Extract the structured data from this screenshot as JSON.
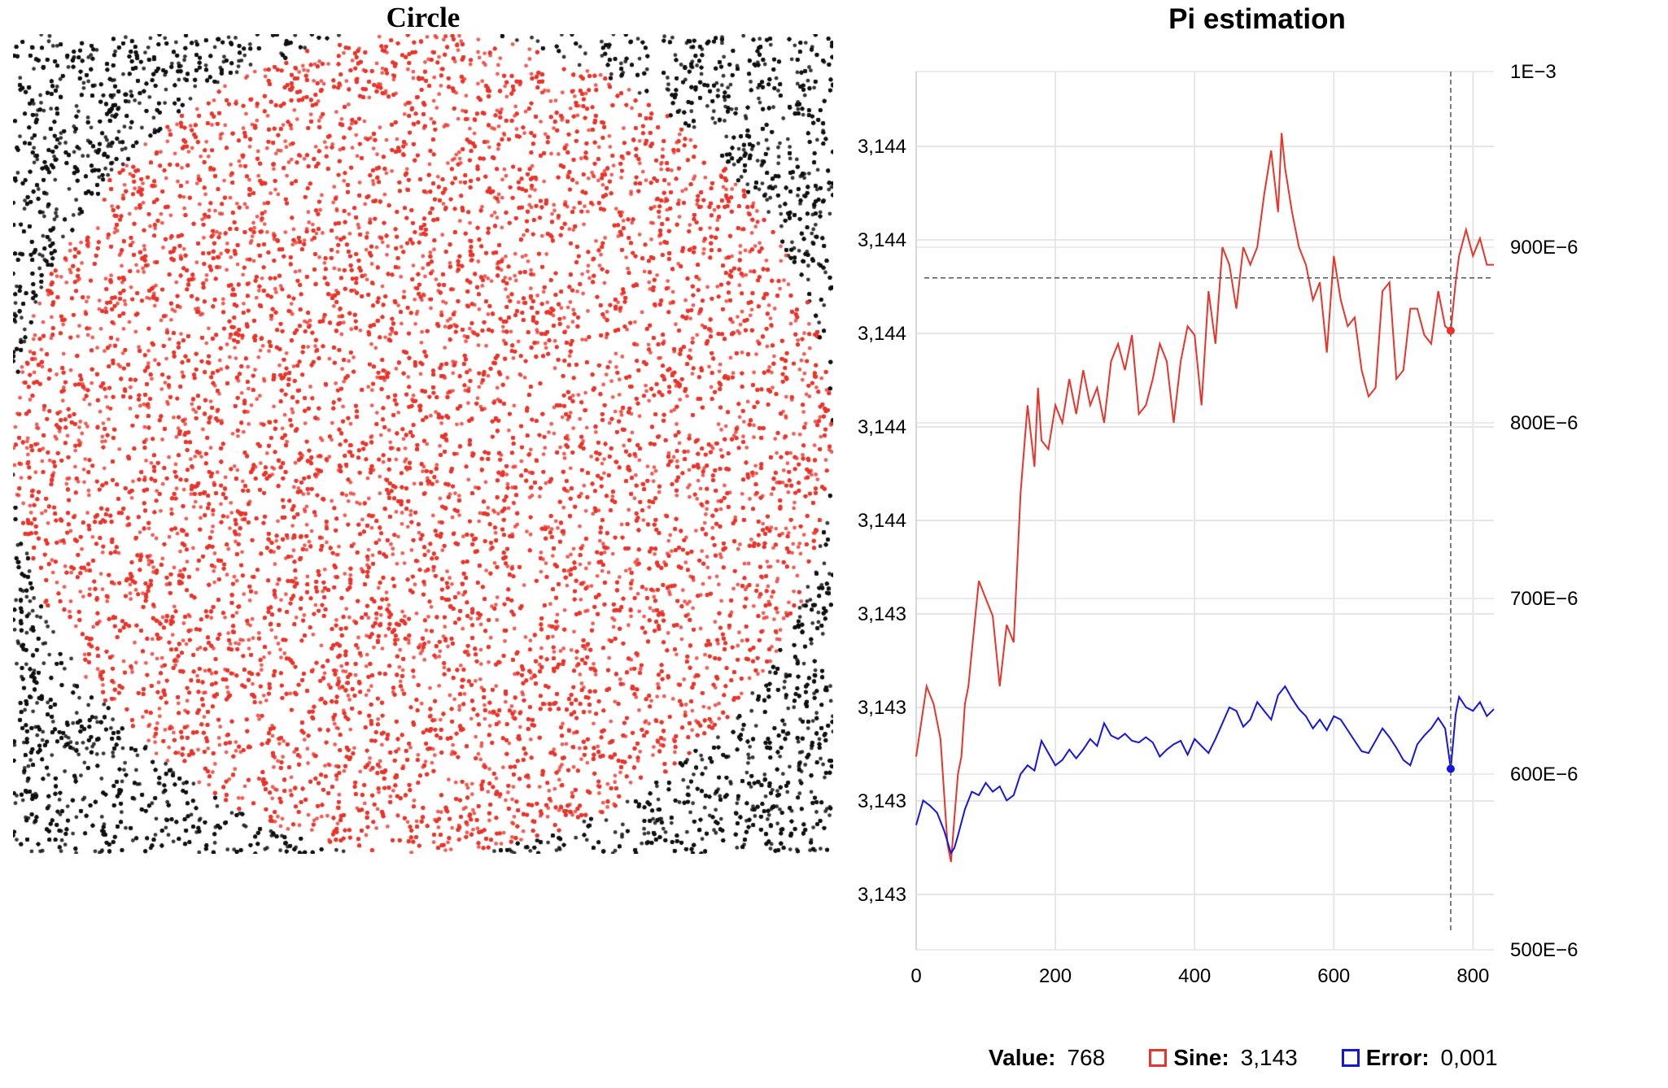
{
  "circle_panel": {
    "title": "Circle",
    "inside_color": "#e8342a",
    "outside_color": "#111111",
    "scatter_x_range": [
      -1,
      1
    ],
    "scatter_y_range": [
      -1,
      1
    ]
  },
  "chart_data": {
    "type": "line",
    "title": "Pi estimation",
    "x_ticks": [
      "0",
      "200",
      "400",
      "600",
      "800"
    ],
    "xlim": [
      0,
      830
    ],
    "y_left_ticks": [
      "3,144",
      "3,144",
      "3,144",
      "3,144",
      "3,144",
      "3,143",
      "3,143",
      "3,143",
      "3,143"
    ],
    "y_right_ticks": [
      "1E−3",
      "900E−6",
      "800E−6",
      "700E−6",
      "600E−6",
      "500E−6"
    ],
    "y_right_values": [
      0.001,
      0.0009,
      0.0008,
      0.0007,
      0.0006,
      0.0005
    ],
    "grid": true,
    "cursor": {
      "x": 768,
      "sine_y_fraction": 0.705,
      "error": 0.000603
    },
    "series": [
      {
        "name": "Sine",
        "color": "#e8342a",
        "axis": "left",
        "x": [
          0,
          15,
          25,
          35,
          45,
          50,
          55,
          60,
          65,
          70,
          75,
          80,
          90,
          100,
          110,
          120,
          130,
          140,
          150,
          160,
          170,
          175,
          180,
          190,
          200,
          210,
          220,
          230,
          240,
          250,
          260,
          270,
          280,
          290,
          300,
          310,
          320,
          330,
          340,
          350,
          360,
          370,
          380,
          390,
          400,
          410,
          420,
          430,
          440,
          450,
          460,
          470,
          480,
          490,
          500,
          510,
          520,
          525,
          530,
          540,
          550,
          560,
          570,
          580,
          590,
          600,
          610,
          620,
          630,
          640,
          650,
          660,
          670,
          680,
          690,
          700,
          710,
          720,
          730,
          740,
          750,
          760,
          768,
          775,
          780,
          790,
          800,
          810,
          820,
          830
        ],
        "y_fraction": [
          0.22,
          0.3,
          0.28,
          0.24,
          0.12,
          0.1,
          0.15,
          0.2,
          0.22,
          0.28,
          0.3,
          0.34,
          0.42,
          0.4,
          0.38,
          0.3,
          0.37,
          0.35,
          0.52,
          0.62,
          0.55,
          0.64,
          0.58,
          0.57,
          0.62,
          0.6,
          0.65,
          0.61,
          0.66,
          0.62,
          0.64,
          0.6,
          0.67,
          0.69,
          0.66,
          0.7,
          0.61,
          0.62,
          0.65,
          0.69,
          0.67,
          0.6,
          0.67,
          0.71,
          0.7,
          0.62,
          0.75,
          0.69,
          0.8,
          0.78,
          0.73,
          0.8,
          0.78,
          0.8,
          0.86,
          0.91,
          0.84,
          0.93,
          0.89,
          0.84,
          0.8,
          0.78,
          0.74,
          0.76,
          0.68,
          0.79,
          0.74,
          0.71,
          0.72,
          0.66,
          0.63,
          0.64,
          0.75,
          0.76,
          0.65,
          0.66,
          0.73,
          0.73,
          0.7,
          0.69,
          0.75,
          0.71,
          0.705,
          0.76,
          0.79,
          0.82,
          0.79,
          0.81,
          0.78,
          0.78
        ]
      },
      {
        "name": "Error",
        "color": "#1515e0",
        "axis": "right",
        "x": [
          0,
          10,
          20,
          30,
          40,
          50,
          55,
          60,
          70,
          80,
          90,
          100,
          110,
          120,
          130,
          140,
          150,
          160,
          170,
          180,
          190,
          200,
          210,
          220,
          230,
          240,
          250,
          260,
          270,
          280,
          290,
          300,
          310,
          320,
          330,
          340,
          350,
          360,
          370,
          380,
          390,
          400,
          410,
          420,
          430,
          440,
          450,
          460,
          470,
          480,
          490,
          500,
          510,
          520,
          530,
          540,
          550,
          560,
          570,
          580,
          590,
          600,
          610,
          620,
          630,
          640,
          650,
          660,
          670,
          680,
          690,
          700,
          710,
          720,
          730,
          740,
          750,
          760,
          768,
          775,
          780,
          790,
          800,
          810,
          820,
          830
        ],
        "y": [
          0.000571,
          0.000585,
          0.000582,
          0.000578,
          0.000568,
          0.000555,
          0.000558,
          0.000565,
          0.00058,
          0.00059,
          0.000588,
          0.000595,
          0.00059,
          0.000593,
          0.000585,
          0.000588,
          0.0006,
          0.000605,
          0.000602,
          0.000619,
          0.000612,
          0.000605,
          0.000608,
          0.000614,
          0.000609,
          0.000614,
          0.00062,
          0.000616,
          0.000629,
          0.000622,
          0.00062,
          0.000623,
          0.000619,
          0.000618,
          0.000621,
          0.000618,
          0.00061,
          0.000614,
          0.000617,
          0.000619,
          0.000611,
          0.00062,
          0.000616,
          0.000612,
          0.00062,
          0.000629,
          0.000638,
          0.000636,
          0.000627,
          0.000631,
          0.000641,
          0.000636,
          0.000631,
          0.000645,
          0.00065,
          0.000643,
          0.000637,
          0.000633,
          0.000626,
          0.000631,
          0.000625,
          0.000633,
          0.000631,
          0.000625,
          0.000619,
          0.000613,
          0.000612,
          0.000619,
          0.000626,
          0.000621,
          0.000615,
          0.000608,
          0.000605,
          0.000617,
          0.000622,
          0.000626,
          0.000632,
          0.000626,
          0.000603,
          0.000634,
          0.000644,
          0.000638,
          0.000636,
          0.000641,
          0.000633,
          0.000637
        ]
      }
    ]
  },
  "legend": {
    "value_label": "Value:",
    "value": "768",
    "sine_label": "Sine:",
    "sine_value": "3,143",
    "error_label": "Error:",
    "error_value": "0,001"
  }
}
